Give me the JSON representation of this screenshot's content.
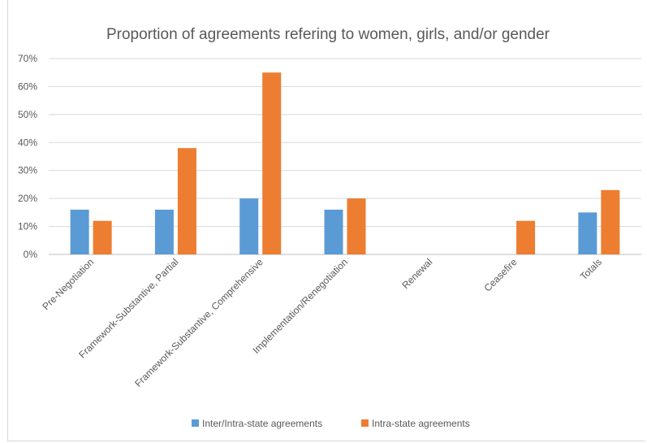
{
  "chart_data": {
    "type": "bar",
    "title": "Proportion of agreements refering to women, girls, and/or gender",
    "xlabel": "",
    "ylabel": "",
    "ylim": [
      0,
      70
    ],
    "yticks": [
      "0%",
      "10%",
      "20%",
      "30%",
      "40%",
      "50%",
      "60%",
      "70%"
    ],
    "grid": true,
    "legend_position": "bottom",
    "categories": [
      "Pre-Negotiation",
      "Framework-Substantive, Partial",
      "Framework-Substantive, Comprehensive",
      "Implementation/Renegotiation",
      "Renewal",
      "Ceasefire",
      "Totals"
    ],
    "series": [
      {
        "name": "Inter/Intra-state agreements",
        "color": "#5b9bd5",
        "values": [
          16,
          16,
          20,
          16,
          0,
          0,
          15
        ]
      },
      {
        "name": "Intra-state agreements",
        "color": "#ed7d31",
        "values": [
          12,
          38,
          65,
          20,
          0,
          12,
          23
        ]
      }
    ]
  }
}
